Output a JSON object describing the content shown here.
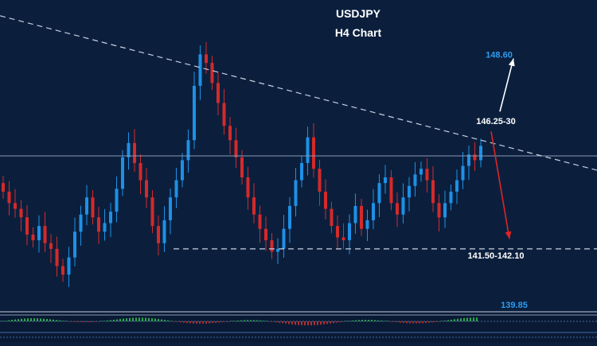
{
  "colors": {
    "background": "#0b1f3d",
    "bull_candle": "#1e90e6",
    "bear_candle": "#d42a2a",
    "trendline": "#c8d0e0",
    "label_blue": "#2e9bf0",
    "label_white": "#ffffff",
    "arrow_up": "#ffffff",
    "arrow_down": "#e02424",
    "osc_green": "#2fa84f",
    "osc_red": "#b03030"
  },
  "chart_data": {
    "type": "candlestick",
    "title": "USDJPY",
    "subtitle": "H4 Chart",
    "symbol": "USDJPY",
    "timeframe": "H4",
    "ylim": [
      139.6,
      150.5
    ],
    "levels": [
      {
        "label": "148.60",
        "value": 148.6,
        "role": "upside target"
      },
      {
        "label": "146.25-30",
        "value": 146.28,
        "role": "resistance"
      },
      {
        "label": "141.50-142.10",
        "value": 141.8,
        "role": "support target"
      },
      {
        "label": "139.85",
        "value": 139.85,
        "role": "lower level"
      }
    ],
    "current_price_line": 145.05,
    "support_line": 141.8,
    "trendline": {
      "start": 149.95,
      "end": 144.55,
      "style": "dashed"
    },
    "arrows": [
      {
        "direction": "up",
        "from": 146.6,
        "to": 148.45
      },
      {
        "direction": "down",
        "from": 145.9,
        "to": 142.15
      }
    ],
    "closes": [
      143.8,
      143.4,
      143.2,
      142.9,
      142.3,
      142.1,
      142.6,
      142.0,
      141.8,
      141.2,
      140.9,
      141.5,
      142.4,
      143.0,
      143.6,
      142.9,
      142.4,
      142.7,
      143.1,
      143.9,
      145.0,
      145.5,
      144.8,
      144.2,
      143.6,
      142.6,
      142.0,
      142.8,
      143.6,
      144.2,
      144.9,
      145.6,
      147.5,
      148.6,
      148.3,
      147.6,
      146.9,
      146.1,
      145.6,
      145.0,
      144.3,
      143.6,
      143.0,
      142.5,
      142.1,
      141.7,
      141.8,
      142.5,
      143.3,
      144.2,
      144.8,
      145.7,
      144.6,
      143.8,
      143.2,
      142.6,
      142.2,
      142.1,
      142.7,
      143.3,
      142.5,
      142.8,
      143.4,
      144.1,
      144.3,
      143.4,
      143.0,
      143.6,
      144.0,
      144.4,
      144.6,
      144.2,
      143.4,
      142.9,
      143.4,
      143.8,
      144.2,
      144.7,
      145.1,
      144.9,
      145.4
    ]
  }
}
